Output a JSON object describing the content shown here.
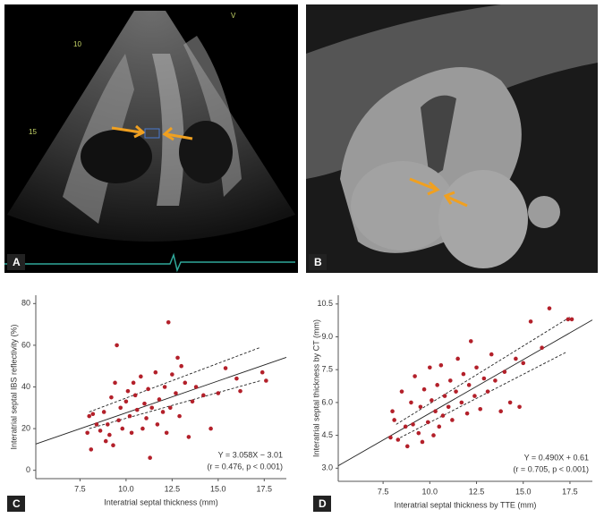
{
  "panels": [
    "A",
    "B",
    "C",
    "D"
  ],
  "echo_labels": [
    "10",
    "15",
    "V"
  ],
  "chart_data": [
    {
      "type": "scatter",
      "xlabel": "Interatrial septal thickness (mm)",
      "ylabel": "Interatrial septal IBS reflectivity (%)",
      "annotations": [
        "Y = 3.058X − 3.01",
        "(r = 0.476,  p < 0.001)"
      ],
      "xlim": [
        5.1,
        18.7
      ],
      "ylim": [
        -4,
        84
      ],
      "xticks": [
        7.5,
        {
          "value": 10,
          "label": "10.0"
        },
        12.5,
        {
          "value": 15,
          "label": "15.0"
        },
        17.5
      ],
      "yticks": [
        0,
        20,
        40,
        60,
        80
      ],
      "series": [
        {
          "color": "#b3202a",
          "x": [
            7.9,
            8.0,
            8.1,
            8.2,
            8.4,
            8.6,
            8.8,
            8.9,
            9.0,
            9.1,
            9.2,
            9.3,
            9.4,
            9.5,
            9.6,
            9.7,
            9.8,
            10.0,
            10.1,
            10.2,
            10.3,
            10.4,
            10.5,
            10.6,
            10.8,
            10.9,
            11.0,
            11.1,
            11.2,
            11.3,
            11.4,
            11.6,
            11.7,
            11.8,
            12.0,
            12.1,
            12.2,
            12.3,
            12.4,
            12.5,
            12.7,
            12.8,
            12.9,
            13.0,
            13.2,
            13.4,
            13.6,
            13.8,
            14.2,
            14.6,
            15.0,
            15.4,
            16.0,
            16.2,
            17.4,
            17.6
          ],
          "values": [
            18,
            26,
            10,
            27,
            22,
            19,
            28,
            14,
            22,
            17,
            35,
            12,
            42,
            60,
            24,
            30,
            20,
            33,
            38,
            26,
            18,
            42,
            36,
            29,
            45,
            20,
            32,
            25,
            39,
            6,
            30,
            47,
            22,
            34,
            28,
            40,
            18,
            71,
            30,
            46,
            37,
            54,
            26,
            50,
            42,
            16,
            33,
            40,
            36,
            20,
            37,
            49,
            44,
            38,
            47,
            43
          ]
        }
      ],
      "lines": [
        {
          "style": "solid",
          "x": [
            5.1,
            18.7
          ],
          "values": [
            12.6,
            54.2
          ]
        },
        {
          "style": "dashed",
          "x": [
            8.0,
            17.3
          ],
          "values": [
            28,
            59
          ]
        },
        {
          "style": "dashed",
          "x": [
            8.0,
            17.3
          ],
          "values": [
            20,
            43
          ]
        }
      ]
    },
    {
      "type": "scatter",
      "xlabel": "Interatrial septal thickness by TTE (mm)",
      "ylabel": "Interatrial septal thickness by CT (mm)",
      "annotations": [
        "Y = 0.490X + 0.61",
        "(r = 0.705,  p < 0.001)"
      ],
      "xlim": [
        5.1,
        18.7
      ],
      "ylim": [
        2.4,
        10.9
      ],
      "xticks": [
        7.5,
        {
          "value": 10,
          "label": "10.0"
        },
        12.5,
        {
          "value": 15,
          "label": "15.0"
        },
        17.5
      ],
      "yticks": [
        {
          "value": 3,
          "label": "3.0"
        },
        4.5,
        {
          "value": 6,
          "label": "6.0"
        },
        7.5,
        {
          "value": 9,
          "label": "9.0"
        },
        10.5
      ],
      "series": [
        {
          "color": "#b3202a",
          "x": [
            7.9,
            8.0,
            8.1,
            8.3,
            8.5,
            8.7,
            8.8,
            9.0,
            9.1,
            9.2,
            9.4,
            9.5,
            9.6,
            9.7,
            9.9,
            10.0,
            10.1,
            10.2,
            10.3,
            10.4,
            10.5,
            10.6,
            10.7,
            10.8,
            11.0,
            11.1,
            11.2,
            11.4,
            11.5,
            11.7,
            11.8,
            12.0,
            12.1,
            12.2,
            12.4,
            12.5,
            12.7,
            12.9,
            13.1,
            13.3,
            13.5,
            13.8,
            14.0,
            14.3,
            14.6,
            14.8,
            15.0,
            15.4,
            16.0,
            16.4,
            17.4,
            17.6
          ],
          "values": [
            4.4,
            5.6,
            5.2,
            4.3,
            6.5,
            4.9,
            4.0,
            6.0,
            5.0,
            7.2,
            4.6,
            5.8,
            4.2,
            6.6,
            5.1,
            7.6,
            6.1,
            4.5,
            5.6,
            6.8,
            4.9,
            7.7,
            5.4,
            6.3,
            5.8,
            7.0,
            5.2,
            6.5,
            8.0,
            6.0,
            7.3,
            5.5,
            6.8,
            8.8,
            6.3,
            7.6,
            5.7,
            7.1,
            6.5,
            8.2,
            7.0,
            5.6,
            7.4,
            6.0,
            8.0,
            5.8,
            7.8,
            9.7,
            8.5,
            10.3,
            9.8,
            9.8
          ]
        }
      ],
      "lines": [
        {
          "style": "solid",
          "x": [
            5.1,
            18.7
          ],
          "values": [
            3.11,
            9.77
          ]
        },
        {
          "style": "dashed",
          "x": [
            8.2,
            17.5
          ],
          "values": [
            5.0,
            9.9
          ]
        },
        {
          "style": "dashed",
          "x": [
            8.2,
            17.3
          ],
          "values": [
            4.3,
            8.3
          ]
        }
      ]
    }
  ]
}
